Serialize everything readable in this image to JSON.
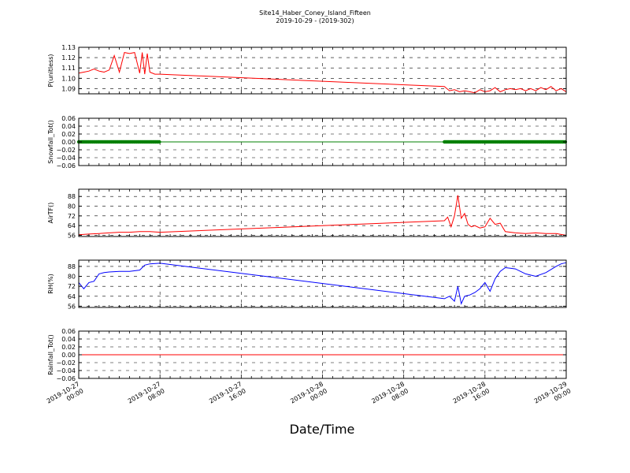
{
  "figure": {
    "title_line1": "Site14_Haber_Coney_Island_Fifteen",
    "title_line2": "2019-10-29 - (2019-302)",
    "xlabel": "Date/Time"
  },
  "chart_data": [
    {
      "type": "line",
      "ylabel": "P(unitless)",
      "ylim": [
        1.085,
        1.13
      ],
      "yticks": [
        1.09,
        1.1,
        1.11,
        1.12,
        1.13
      ],
      "ytick_labels": [
        "1.09",
        "1.10",
        "1.11",
        "1.12",
        "1.13"
      ],
      "color": "#ff0000",
      "grid": true,
      "x": [
        "2019-10-27 00:00",
        "2019-10-27 00:30",
        "2019-10-27 01:00",
        "2019-10-27 01:30",
        "2019-10-27 02:00",
        "2019-10-27 02:30",
        "2019-10-27 03:00",
        "2019-10-27 03:30",
        "2019-10-27 04:00",
        "2019-10-27 04:30",
        "2019-10-27 05:00",
        "2019-10-27 05:30",
        "2019-10-27 06:00",
        "2019-10-27 06:15",
        "2019-10-27 06:30",
        "2019-10-27 06:45",
        "2019-10-27 07:00",
        "2019-10-27 07:30",
        "2019-10-27 08:00",
        "2019-10-28 12:00",
        "2019-10-28 12:30",
        "2019-10-28 13:00",
        "2019-10-28 13:30",
        "2019-10-28 14:00",
        "2019-10-28 14:30",
        "2019-10-28 15:00",
        "2019-10-28 15:30",
        "2019-10-28 16:00",
        "2019-10-28 16:30",
        "2019-10-28 17:00",
        "2019-10-28 17:30",
        "2019-10-28 18:00",
        "2019-10-28 18:30",
        "2019-10-28 19:00",
        "2019-10-28 19:30",
        "2019-10-28 20:00",
        "2019-10-28 20:30",
        "2019-10-28 21:00",
        "2019-10-28 21:30",
        "2019-10-28 22:00",
        "2019-10-28 22:30",
        "2019-10-28 23:00",
        "2019-10-28 23:30",
        "2019-10-29 00:00"
      ],
      "y": [
        1.105,
        1.106,
        1.107,
        1.109,
        1.107,
        1.106,
        1.108,
        1.122,
        1.106,
        1.125,
        1.124,
        1.125,
        1.105,
        1.125,
        1.104,
        1.124,
        1.106,
        1.104,
        1.104,
        1.092,
        1.088,
        1.089,
        1.087,
        1.088,
        1.087,
        1.086,
        1.089,
        1.087,
        1.088,
        1.091,
        1.087,
        1.089,
        1.09,
        1.089,
        1.09,
        1.088,
        1.09,
        1.088,
        1.091,
        1.089,
        1.092,
        1.088,
        1.09,
        1.087
      ]
    },
    {
      "type": "line",
      "ylabel": "Snowfall_Tot()",
      "ylim": [
        -0.06,
        0.06
      ],
      "yticks": [
        -0.06,
        -0.04,
        -0.02,
        0.0,
        0.02,
        0.04,
        0.06
      ],
      "ytick_labels": [
        "−0.06",
        "−0.04",
        "−0.02",
        "0.00",
        "0.02",
        "0.04",
        "0.06"
      ],
      "color": "#008000",
      "markers": true,
      "grid": true,
      "x": [
        "2019-10-27 00:00",
        "2019-10-27 08:00",
        "2019-10-28 12:00",
        "2019-10-29 00:00"
      ],
      "y": [
        0,
        0,
        0,
        0
      ]
    },
    {
      "type": "line",
      "ylabel": "AirTF()",
      "ylim": [
        55,
        94
      ],
      "yticks": [
        56,
        64,
        72,
        80,
        88
      ],
      "ytick_labels": [
        "56",
        "64",
        "72",
        "80",
        "88"
      ],
      "color": "#ff0000",
      "grid": true,
      "x": [
        "2019-10-27 00:00",
        "2019-10-27 01:00",
        "2019-10-27 02:00",
        "2019-10-27 03:00",
        "2019-10-27 04:00",
        "2019-10-27 05:00",
        "2019-10-27 06:00",
        "2019-10-27 07:00",
        "2019-10-27 08:00",
        "2019-10-28 12:00",
        "2019-10-28 12:20",
        "2019-10-28 12:40",
        "2019-10-28 13:00",
        "2019-10-28 13:20",
        "2019-10-28 13:40",
        "2019-10-28 14:00",
        "2019-10-28 14:20",
        "2019-10-28 14:40",
        "2019-10-28 15:00",
        "2019-10-28 15:30",
        "2019-10-28 16:00",
        "2019-10-28 16:30",
        "2019-10-28 17:00",
        "2019-10-28 17:30",
        "2019-10-28 18:00",
        "2019-10-28 19:00",
        "2019-10-28 20:00",
        "2019-10-28 21:00",
        "2019-10-28 22:00",
        "2019-10-28 23:00",
        "2019-10-29 00:00"
      ],
      "y": [
        56.5,
        57.0,
        57.5,
        58.0,
        58.5,
        58.5,
        59.0,
        59.0,
        58.5,
        68.0,
        71.0,
        63.0,
        72.0,
        89.0,
        70.0,
        74.0,
        65.0,
        63.0,
        64.0,
        62.0,
        63.0,
        70.0,
        65.0,
        66.0,
        59.0,
        58.0,
        57.5,
        58.0,
        57.5,
        57.5,
        56.0
      ]
    },
    {
      "type": "line",
      "ylabel": "RH(%)",
      "ylim": [
        55,
        93
      ],
      "yticks": [
        56,
        64,
        72,
        80,
        88
      ],
      "ytick_labels": [
        "56",
        "64",
        "72",
        "80",
        "88"
      ],
      "color": "#0000ff",
      "grid": true,
      "x": [
        "2019-10-27 00:00",
        "2019-10-27 00:30",
        "2019-10-27 01:00",
        "2019-10-27 01:30",
        "2019-10-27 02:00",
        "2019-10-27 02:30",
        "2019-10-27 03:00",
        "2019-10-27 04:00",
        "2019-10-27 05:00",
        "2019-10-27 06:00",
        "2019-10-27 06:30",
        "2019-10-27 07:00",
        "2019-10-27 08:00",
        "2019-10-28 12:00",
        "2019-10-28 12:30",
        "2019-10-28 13:00",
        "2019-10-28 13:20",
        "2019-10-28 13:40",
        "2019-10-28 14:00",
        "2019-10-28 14:30",
        "2019-10-28 15:00",
        "2019-10-28 15:30",
        "2019-10-28 16:00",
        "2019-10-28 16:30",
        "2019-10-28 17:00",
        "2019-10-28 17:30",
        "2019-10-28 18:00",
        "2019-10-28 18:30",
        "2019-10-28 19:00",
        "2019-10-28 20:00",
        "2019-10-28 21:00",
        "2019-10-28 22:00",
        "2019-10-28 23:00",
        "2019-10-28 23:30",
        "2019-10-29 00:00"
      ],
      "y": [
        75.0,
        70.0,
        75.0,
        76.0,
        82.0,
        83.0,
        83.5,
        84.0,
        84.0,
        85.0,
        89.0,
        90.0,
        90.5,
        62.0,
        64.0,
        60.0,
        72.0,
        58.0,
        64.0,
        65.0,
        67.0,
        70.0,
        75.0,
        68.0,
        78.0,
        84.0,
        87.0,
        86.5,
        86.0,
        82.0,
        80.0,
        83.0,
        88.0,
        90.0,
        91.0
      ]
    },
    {
      "type": "line",
      "ylabel": "Rainfall_Tot()",
      "ylim": [
        -0.06,
        0.06
      ],
      "yticks": [
        -0.06,
        -0.04,
        -0.02,
        0.0,
        0.02,
        0.04,
        0.06
      ],
      "ytick_labels": [
        "−0.06",
        "−0.04",
        "−0.02",
        "0.00",
        "0.02",
        "0.04",
        "0.06"
      ],
      "color": "#ff0000",
      "grid": true,
      "x": [
        "2019-10-27 00:00",
        "2019-10-29 00:00"
      ],
      "y": [
        0,
        0
      ]
    }
  ],
  "x_axis": {
    "xlim": [
      "2019-10-27 00:00",
      "2019-10-29 00:00"
    ],
    "ticks": [
      "2019-10-27 00:00",
      "2019-10-27 08:00",
      "2019-10-27 16:00",
      "2019-10-28 00:00",
      "2019-10-28 08:00",
      "2019-10-28 16:00",
      "2019-10-29 00:00"
    ],
    "tick_labels": [
      {
        "line1": "2019-10-27",
        "line2": "00:00"
      },
      {
        "line1": "2019-10-27",
        "line2": "08:00"
      },
      {
        "line1": "2019-10-27",
        "line2": "16:00"
      },
      {
        "line1": "2019-10-28",
        "line2": "00:00"
      },
      {
        "line1": "2019-10-28",
        "line2": "08:00"
      },
      {
        "line1": "2019-10-28",
        "line2": "16:00"
      },
      {
        "line1": "2019-10-29",
        "line2": "00:00"
      }
    ]
  }
}
